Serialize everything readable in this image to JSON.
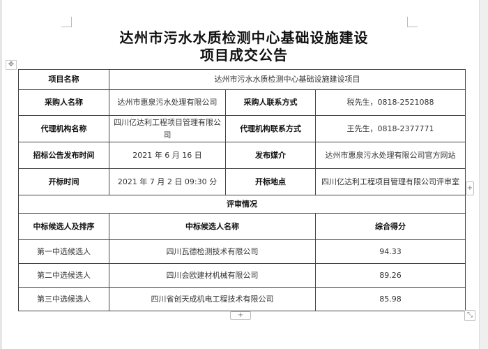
{
  "title": {
    "line1": "达州市污水水质检测中心基础设施建设",
    "line2": "项目成交公告"
  },
  "info": {
    "project_name_label": "项目名称",
    "project_name": "达州市污水水质检测中心基础设施建设项目",
    "purchaser_label": "采购人名称",
    "purchaser": "达州市惠泉污水处理有限公司",
    "purchaser_contact_label": "采购人联系方式",
    "purchaser_contact": "税先生，0818-2521088",
    "agency_label": "代理机构名称",
    "agency": "四川亿达利工程项目管理有限公司",
    "agency_contact_label": "代理机构联系方式",
    "agency_contact": "王先生，0818-2377771",
    "notice_date_label": "招标公告发布时间",
    "notice_date": "2021 年 6 月 16 日",
    "media_label": "发布媒介",
    "media": "达州市惠泉污水处理有限公司官方网站",
    "open_time_label": "开标时间",
    "open_time": "2021 年 7 月 2 日 09:30 分",
    "open_place_label": "开标地点",
    "open_place": "四川亿达利工程项目管理有限公司评审室"
  },
  "review": {
    "heading": "评审情况",
    "headers": [
      "中标候选人及排序",
      "中标候选人名称",
      "综合得分"
    ],
    "rows": [
      [
        "第一中选候选人",
        "四川瓦德检测技术有限公司",
        "94.33"
      ],
      [
        "第二中选候选人",
        "四川会欧建材机械有限公司",
        "89.26"
      ],
      [
        "第三中选候选人",
        "四川省创天成机电工程技术有限公司",
        "85.98"
      ]
    ]
  },
  "controls": {
    "add_row": "+",
    "add_col": "+",
    "move": "✥",
    "resize": "⤡"
  }
}
